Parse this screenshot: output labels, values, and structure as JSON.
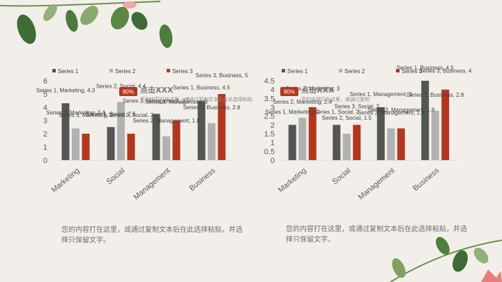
{
  "palette": {
    "series1": "#555555",
    "series2": "#b1b1b1",
    "series3": "#b4361f",
    "axis": "#d9d9d9",
    "text": "#595959",
    "leaf_dark": "#3f6b34",
    "leaf_light": "#93b07a",
    "flower": "#f1a7a2"
  },
  "captions": [
    "您的内容打在这里，或通过复制文本后在此选择粘贴，并选择只保留文字。",
    "您的内容打在这里，或通过复制文本后在此选择粘贴，并选择只保留文字。"
  ],
  "chart_data": [
    {
      "type": "bar",
      "categories": [
        "Marketing",
        "Social",
        "Management",
        "Business"
      ],
      "series": [
        {
          "name": "Series 1",
          "values": [
            4.3,
            2.5,
            3.5,
            4.5
          ]
        },
        {
          "name": "Series 2",
          "values": [
            2.4,
            4.4,
            1.8,
            2.8
          ]
        },
        {
          "name": "Series 3",
          "values": [
            2,
            2,
            3,
            5
          ]
        }
      ],
      "ylim": [
        0,
        6
      ],
      "yticks": [
        0,
        1,
        2,
        3,
        4,
        5,
        6
      ],
      "legend": "top-left",
      "callout": {
        "badge": "80%",
        "title": "点击XXX",
        "text": "您的内容打在这里，或通过复制文本后在此选择粘贴"
      },
      "data_labels": [
        "Series 1, Marketing, 4.3",
        "Series 2, Marketing, 2.4",
        "Series 3, Marketing, 2",
        "Series 1, Social, 2.5",
        "Series 2, Social, 4.4",
        "Series 3, Social, 2",
        "Series 1, Management, 3.5",
        "Series 2, Management, 1.8",
        "Series 3, Management, 3",
        "Series 1, Business, 4.5",
        "Series 2, Business, 2.8",
        "Series 3, Business, 5"
      ]
    },
    {
      "type": "bar",
      "categories": [
        "Marketing",
        "Social",
        "Management",
        "Business"
      ],
      "series": [
        {
          "name": "Series 1",
          "values": [
            2,
            2,
            3,
            4.5
          ]
        },
        {
          "name": "Series 2",
          "values": [
            2.4,
            1.5,
            1.8,
            2.8
          ]
        },
        {
          "name": "Series 3",
          "values": [
            3,
            2,
            1.8,
            4
          ]
        }
      ],
      "ylim": [
        0,
        4.5
      ],
      "yticks": [
        0,
        0.5,
        1,
        1.5,
        2,
        2.5,
        3,
        3.5,
        4,
        4.5
      ],
      "legend": "top-left",
      "callout": {
        "badge": "80%",
        "title": "点击XXX",
        "text": "您的内容打在这里，或通过复制"
      },
      "data_labels": [
        "Series 1, Marketing, 2",
        "Series 2, Marketing, 2.4",
        "Series 3, Marketing, 3",
        "Series 1, Social, 2",
        "Series 2, Social, 1.5",
        "Series 3, Social, 2",
        "Series 1, Management, 3",
        "Series 2, Management, 1.8",
        "Series 3, Management, 1.8",
        "Series 1, Business, 4.5",
        "Series 2, Business, 2.8",
        "Series 3, Business, 4"
      ]
    }
  ]
}
